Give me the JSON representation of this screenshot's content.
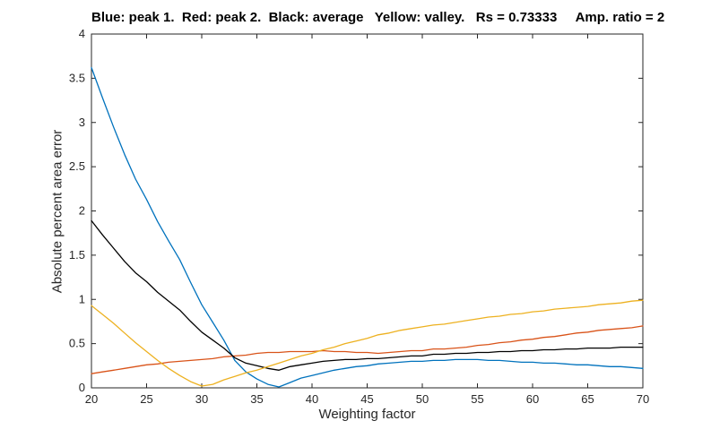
{
  "figure": {
    "background": "#ffffff"
  },
  "chart_data": {
    "type": "line",
    "title": "Blue: peak 1.  Red: peak 2.  Black: average   Yellow: valley.   Rs = 0.73333     Amp. ratio = 2",
    "xlabel": "Weighting factor",
    "ylabel": "Absolute percent area error",
    "rs_value": "0.73333",
    "amp_ratio": "2",
    "xlim": [
      20,
      70
    ],
    "ylim": [
      0,
      4
    ],
    "grid": false,
    "box": true,
    "axis_color": "#262626",
    "tick_label_color": "#262626",
    "xticks": [
      20,
      25,
      30,
      35,
      40,
      45,
      50,
      55,
      60,
      65,
      70
    ],
    "xtick_labels": [
      "20",
      "25",
      "30",
      "35",
      "40",
      "45",
      "50",
      "55",
      "60",
      "65",
      "70"
    ],
    "yticks": [
      0,
      0.5,
      1,
      1.5,
      2,
      2.5,
      3,
      3.5,
      4
    ],
    "ytick_labels": [
      "0",
      "0.5",
      "1",
      "1.5",
      "2",
      "2.5",
      "3",
      "3.5",
      "4"
    ],
    "x": [
      20,
      21,
      22,
      23,
      24,
      25,
      26,
      27,
      28,
      29,
      30,
      31,
      32,
      33,
      34,
      35,
      36,
      37,
      38,
      39,
      40,
      41,
      42,
      43,
      44,
      45,
      46,
      47,
      48,
      49,
      50,
      51,
      52,
      53,
      54,
      55,
      56,
      57,
      58,
      59,
      60,
      61,
      62,
      63,
      64,
      65,
      66,
      67,
      68,
      69,
      70
    ],
    "series": [
      {
        "name": "peak 1",
        "color": "#0072BD",
        "values": [
          3.62,
          3.28,
          2.95,
          2.64,
          2.36,
          2.13,
          1.88,
          1.66,
          1.45,
          1.19,
          0.94,
          0.74,
          0.54,
          0.31,
          0.18,
          0.1,
          0.04,
          0.01,
          0.06,
          0.11,
          0.14,
          0.17,
          0.2,
          0.22,
          0.24,
          0.25,
          0.27,
          0.28,
          0.29,
          0.3,
          0.3,
          0.31,
          0.31,
          0.32,
          0.32,
          0.32,
          0.31,
          0.31,
          0.3,
          0.29,
          0.29,
          0.28,
          0.28,
          0.27,
          0.26,
          0.26,
          0.25,
          0.24,
          0.24,
          0.23,
          0.22
        ]
      },
      {
        "name": "peak 2",
        "color": "#D95319",
        "values": [
          0.16,
          0.18,
          0.2,
          0.22,
          0.24,
          0.26,
          0.27,
          0.29,
          0.3,
          0.31,
          0.32,
          0.33,
          0.35,
          0.36,
          0.37,
          0.39,
          0.4,
          0.4,
          0.41,
          0.41,
          0.41,
          0.42,
          0.41,
          0.41,
          0.4,
          0.4,
          0.39,
          0.4,
          0.41,
          0.42,
          0.42,
          0.44,
          0.44,
          0.45,
          0.46,
          0.48,
          0.49,
          0.51,
          0.52,
          0.54,
          0.55,
          0.57,
          0.58,
          0.6,
          0.62,
          0.63,
          0.65,
          0.66,
          0.67,
          0.68,
          0.7
        ]
      },
      {
        "name": "average",
        "color": "#000000",
        "values": [
          1.89,
          1.73,
          1.58,
          1.43,
          1.3,
          1.2,
          1.08,
          0.98,
          0.88,
          0.75,
          0.63,
          0.54,
          0.45,
          0.34,
          0.28,
          0.25,
          0.22,
          0.2,
          0.24,
          0.26,
          0.28,
          0.3,
          0.31,
          0.32,
          0.32,
          0.33,
          0.33,
          0.34,
          0.35,
          0.36,
          0.36,
          0.38,
          0.38,
          0.39,
          0.39,
          0.4,
          0.4,
          0.41,
          0.41,
          0.42,
          0.42,
          0.43,
          0.43,
          0.44,
          0.44,
          0.45,
          0.45,
          0.45,
          0.46,
          0.46,
          0.46
        ]
      },
      {
        "name": "valley",
        "color": "#EDB120",
        "values": [
          0.93,
          0.83,
          0.73,
          0.62,
          0.51,
          0.41,
          0.31,
          0.22,
          0.14,
          0.07,
          0.02,
          0.04,
          0.09,
          0.13,
          0.17,
          0.2,
          0.24,
          0.28,
          0.32,
          0.36,
          0.39,
          0.43,
          0.46,
          0.5,
          0.53,
          0.56,
          0.6,
          0.62,
          0.65,
          0.67,
          0.69,
          0.71,
          0.72,
          0.74,
          0.76,
          0.78,
          0.8,
          0.81,
          0.83,
          0.84,
          0.86,
          0.87,
          0.89,
          0.9,
          0.91,
          0.92,
          0.94,
          0.95,
          0.96,
          0.98,
          0.99
        ]
      }
    ]
  }
}
